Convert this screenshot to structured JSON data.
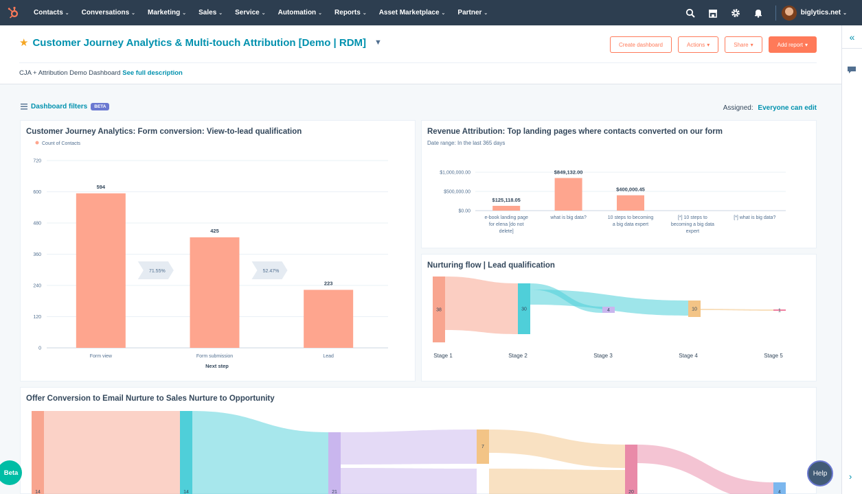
{
  "nav": {
    "items": [
      {
        "label": "Contacts"
      },
      {
        "label": "Conversations"
      },
      {
        "label": "Marketing"
      },
      {
        "label": "Sales"
      },
      {
        "label": "Service"
      },
      {
        "label": "Automation"
      },
      {
        "label": "Reports"
      },
      {
        "label": "Asset Marketplace"
      },
      {
        "label": "Partner"
      }
    ],
    "caret": "⌄",
    "account": "biglytics.net",
    "icons": [
      "search-icon",
      "marketplace-icon",
      "settings-icon",
      "notifications-icon"
    ]
  },
  "header": {
    "title": "Customer Journey Analytics & Multi-touch Attribution [Demo | RDM]",
    "description": "CJA + Attribution Demo Dashboard",
    "description_link": "See full description",
    "buttons": {
      "create": "Create dashboard",
      "actions": "Actions",
      "share": "Share",
      "add_report": "Add report"
    }
  },
  "filters": {
    "label": "Dashboard filters",
    "badge": "BETA",
    "assigned_label": "Assigned:",
    "assigned_value": "Everyone can edit"
  },
  "card1": {
    "title": "Customer Journey Analytics: Form conversion: View-to-lead qualification",
    "chart_data": {
      "type": "bar",
      "title": "Customer Journey Analytics: Form conversion: View-to-lead qualification",
      "legend": "Count of Contacts",
      "legend_position": "top-left",
      "categories": [
        "Form view",
        "Form submission",
        "Lead"
      ],
      "values": [
        594,
        425,
        223
      ],
      "value_labels": [
        "594",
        "425",
        "223"
      ],
      "conversions": [
        "71.55%",
        "52.47%"
      ],
      "xlabel": "Next step",
      "ylabel": "",
      "ylim": [
        0,
        720
      ],
      "yticks": [
        "0",
        "120",
        "240",
        "360",
        "480",
        "600",
        "720"
      ],
      "ytick_values": [
        0,
        120,
        240,
        360,
        480,
        600,
        720
      ],
      "grid": true,
      "color": "#fea58e"
    }
  },
  "card2": {
    "title": "Revenue Attribution: Top landing pages where contacts converted on our form",
    "subtitle": "Date range: In the last 365 days",
    "chart_data": {
      "type": "bar",
      "title": "Revenue Attribution: Top landing pages where contacts converted on our form",
      "categories": [
        [
          "e-book landing page",
          "for elena [do not",
          "delete]"
        ],
        [
          "what is big data?"
        ],
        [
          "10 steps to becoming",
          "a big data expert"
        ],
        [
          "[*] 10 steps to",
          "becoming a big data",
          "expert"
        ],
        [
          "[*] what is big data?"
        ]
      ],
      "values": [
        125118.05,
        849132.0,
        400000.45,
        0,
        0
      ],
      "value_labels": [
        "$125,118.05",
        "$849,132.00",
        "$400,000.45",
        "",
        ""
      ],
      "ylim": [
        0,
        1000000
      ],
      "yticks": [
        "$0.00",
        "$500,000.00",
        "$1,000,000.00"
      ],
      "ytick_values": [
        0,
        500000,
        1000000
      ],
      "grid": true,
      "color": "#fea58e"
    }
  },
  "card3": {
    "title": "Nurturing flow | Lead qualification",
    "stages": [
      "Stage 1",
      "Stage 2",
      "Stage 3",
      "Stage 4",
      "Stage 5"
    ],
    "nodes": [
      {
        "label": "38",
        "color": "#f8a58f"
      },
      {
        "label": "30",
        "color": "#4fcfd9"
      },
      {
        "label": "4",
        "color": "#c9b6ee"
      },
      {
        "label": "10",
        "color": "#f3c486"
      },
      {
        "label": "1",
        "color": "#ef7f9f"
      }
    ]
  },
  "card4": {
    "title": "Offer Conversion to Email Nurture to Sales Nurture to Opportunity",
    "nodes": [
      {
        "label": "14",
        "color": "#f8a58f"
      },
      {
        "label": "14",
        "color": "#4fcfd9"
      },
      {
        "label": "21",
        "color": "#c9b6ee"
      },
      {
        "label": "7",
        "color": "#f3c486"
      },
      {
        "label": "20",
        "color": "#e98aa8"
      },
      {
        "label": "4",
        "color": "#7cb7ee"
      }
    ]
  },
  "floating": {
    "beta": "Beta",
    "help": "Help"
  }
}
